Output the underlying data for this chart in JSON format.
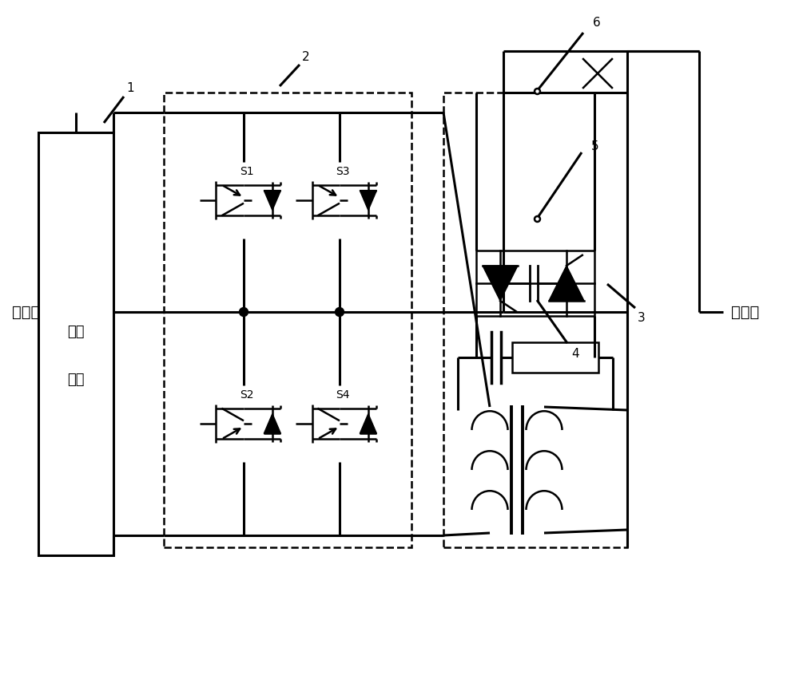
{
  "background_color": "#ffffff",
  "line_color": "#000000",
  "lw": 1.8,
  "lw_thick": 2.2,
  "labels": {
    "power_side": "电源侧",
    "load_side": "负荷侧",
    "storage_line1": "储能",
    "storage_line2": "单元",
    "s1": "S1",
    "s2": "S2",
    "s3": "S3",
    "s4": "S4",
    "label1": "1",
    "label2": "2",
    "label3": "3",
    "label4": "4",
    "label5": "5",
    "label6": "6"
  },
  "figsize": [
    10.0,
    8.46
  ]
}
